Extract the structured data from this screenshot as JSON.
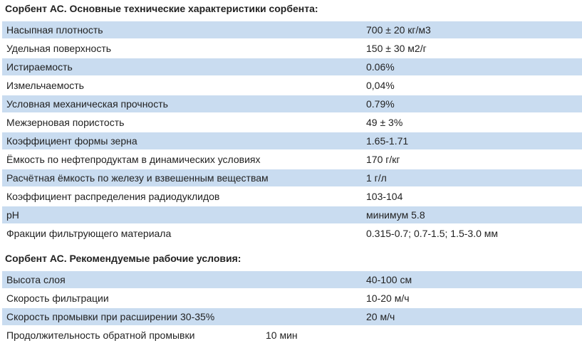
{
  "section1": {
    "title": "Сорбент АС. Основные технические характеристики сорбента:",
    "rows": [
      {
        "label": "Насыпная плотность",
        "value": "700 ± 20 кг/м3"
      },
      {
        "label": "Удельная поверхность",
        "value": "150 ± 30 м2/г"
      },
      {
        "label": "Истираемость",
        "value": "0.06%"
      },
      {
        "label": "Измельчаемость",
        "value": "0,04%"
      },
      {
        "label": "Условная механическая прочность",
        "value": "0.79%"
      },
      {
        "label": "Межзерновая пористость",
        "value": "49 ± 3%"
      },
      {
        "label": "Коэффициент формы зерна",
        "value": "1.65-1.71"
      },
      {
        "label": "Ёмкость по нефтепродуктам в динамических условиях",
        "value": "170 г/кг"
      },
      {
        "label": "Расчётная ёмкость по железу и взвешенным веществам",
        "value": "1 г/л"
      },
      {
        "label": "Коэффициент распределения радиодуклидов",
        "value": "103-104"
      },
      {
        "label": "pH",
        "value": "минимум 5.8"
      },
      {
        "label": "Фракции фильтрующего материала",
        "value": "0.315-0.7; 0.7-1.5; 1.5-3.0 мм"
      }
    ]
  },
  "section2": {
    "title": "Сорбент АС. Рекомендуемые рабочие условия:",
    "rows": [
      {
        "label": "Высота слоя",
        "value": "40-100 см"
      },
      {
        "label": "Скорость фильтрации",
        "value": "10-20 м/ч"
      },
      {
        "label": "Скорость промывки при расширении 30-35%",
        "value": "20 м/ч"
      },
      {
        "label": "Продолжительность обратной промывки",
        "value": "10 мин"
      }
    ]
  },
  "colors": {
    "row_stripe": "#c9dcf0",
    "text": "#222222"
  }
}
